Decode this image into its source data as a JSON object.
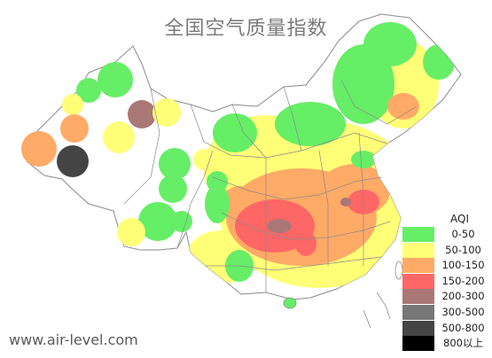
{
  "title": "全国空气质量指数",
  "watermark": "www.air-level.com",
  "legend": {
    "title": "AQI",
    "items": [
      {
        "label": "0-50",
        "color": "#66ee66"
      },
      {
        "label": "50-100",
        "color": "#ffff77"
      },
      {
        "label": "100-150",
        "color": "#ffaa66"
      },
      {
        "label": "150-200",
        "color": "#ff6666"
      },
      {
        "label": "200-300",
        "color": "#aa7777"
      },
      {
        "label": "300-500",
        "color": "#777777"
      },
      {
        "label": "500-800",
        "color": "#444444"
      },
      {
        "label": "800以上",
        "color": "#000000"
      }
    ]
  },
  "map_colors": {
    "good": "#66ee66",
    "moderate": "#ffff77",
    "sensitive": "#ffaa66",
    "unhealthy": "#ff6666",
    "very_unhealthy": "#aa7777",
    "hazardous": "#777777",
    "severe": "#444444",
    "boundary": "#9a9a9a"
  }
}
